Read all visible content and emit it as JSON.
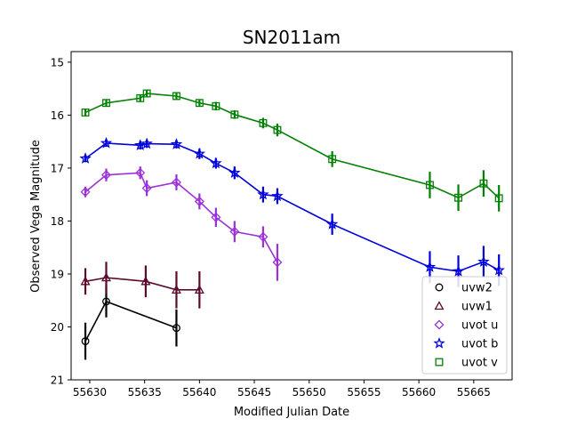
{
  "chart_data": {
    "type": "scatter",
    "title": "SN2011am",
    "xlabel": "Modified Julian Date",
    "ylabel": "Observed Vega Magnitude",
    "xlim": [
      55628.3,
      55668.5
    ],
    "ylim": [
      21,
      14.8
    ],
    "y_inverted": true,
    "grid": false,
    "legend_position": "lower-right",
    "x_ticks": [
      55630,
      55635,
      55640,
      55645,
      55650,
      55655,
      55660,
      55665
    ],
    "y_ticks": [
      15,
      16,
      17,
      18,
      19,
      20,
      21
    ],
    "series": [
      {
        "name": "uvw2",
        "color": "#000000",
        "marker": "circle",
        "x": [
          55629.6,
          55631.5,
          55637.9
        ],
        "y": [
          20.27,
          19.52,
          20.02
        ],
        "yerr": [
          0.35,
          0.3,
          0.35
        ]
      },
      {
        "name": "uvw1",
        "color": "#5c0a2e",
        "marker": "triangle",
        "x": [
          55629.6,
          55631.5,
          55635.1,
          55637.9,
          55640.0
        ],
        "y": [
          19.14,
          19.07,
          19.14,
          19.3,
          19.3
        ],
        "yerr": [
          0.25,
          0.3,
          0.3,
          0.35,
          0.35
        ]
      },
      {
        "name": "uvot u",
        "color": "#9b30d8",
        "marker": "diamond",
        "x": [
          55629.6,
          55631.5,
          55634.6,
          55635.2,
          55637.9,
          55640.0,
          55641.5,
          55643.2,
          55645.8,
          55647.1
        ],
        "y": [
          17.45,
          17.13,
          17.09,
          17.38,
          17.27,
          17.63,
          17.93,
          18.2,
          18.3,
          18.78
        ],
        "yerr": [
          0.1,
          0.12,
          0.12,
          0.15,
          0.15,
          0.15,
          0.18,
          0.2,
          0.2,
          0.35
        ]
      },
      {
        "name": "uvot b",
        "color": "#0000dd",
        "marker": "star",
        "x": [
          55629.6,
          55631.5,
          55634.6,
          55635.2,
          55637.9,
          55640.0,
          55641.5,
          55643.2,
          55645.8,
          55647.1,
          55652.1,
          55661.0,
          55663.6,
          55665.9,
          55667.3
        ],
        "y": [
          16.82,
          16.53,
          16.57,
          16.54,
          16.55,
          16.73,
          16.91,
          17.09,
          17.5,
          17.53,
          18.06,
          18.87,
          18.95,
          18.77,
          18.93
        ],
        "yerr": [
          0.07,
          0.07,
          0.08,
          0.08,
          0.08,
          0.1,
          0.1,
          0.12,
          0.15,
          0.15,
          0.2,
          0.3,
          0.3,
          0.3,
          0.3
        ]
      },
      {
        "name": "uvot v",
        "color": "#008000",
        "marker": "square",
        "x": [
          55629.6,
          55631.5,
          55634.6,
          55635.2,
          55637.9,
          55640.0,
          55641.5,
          55643.2,
          55645.8,
          55647.1,
          55652.1,
          55661.0,
          55663.6,
          55665.9,
          55667.3
        ],
        "y": [
          15.95,
          15.77,
          15.68,
          15.59,
          15.64,
          15.77,
          15.83,
          15.99,
          16.15,
          16.28,
          16.83,
          17.32,
          17.56,
          17.29,
          17.57
        ],
        "yerr": [
          0.07,
          0.07,
          0.07,
          0.07,
          0.07,
          0.07,
          0.08,
          0.08,
          0.1,
          0.12,
          0.15,
          0.25,
          0.25,
          0.25,
          0.25
        ]
      }
    ]
  }
}
